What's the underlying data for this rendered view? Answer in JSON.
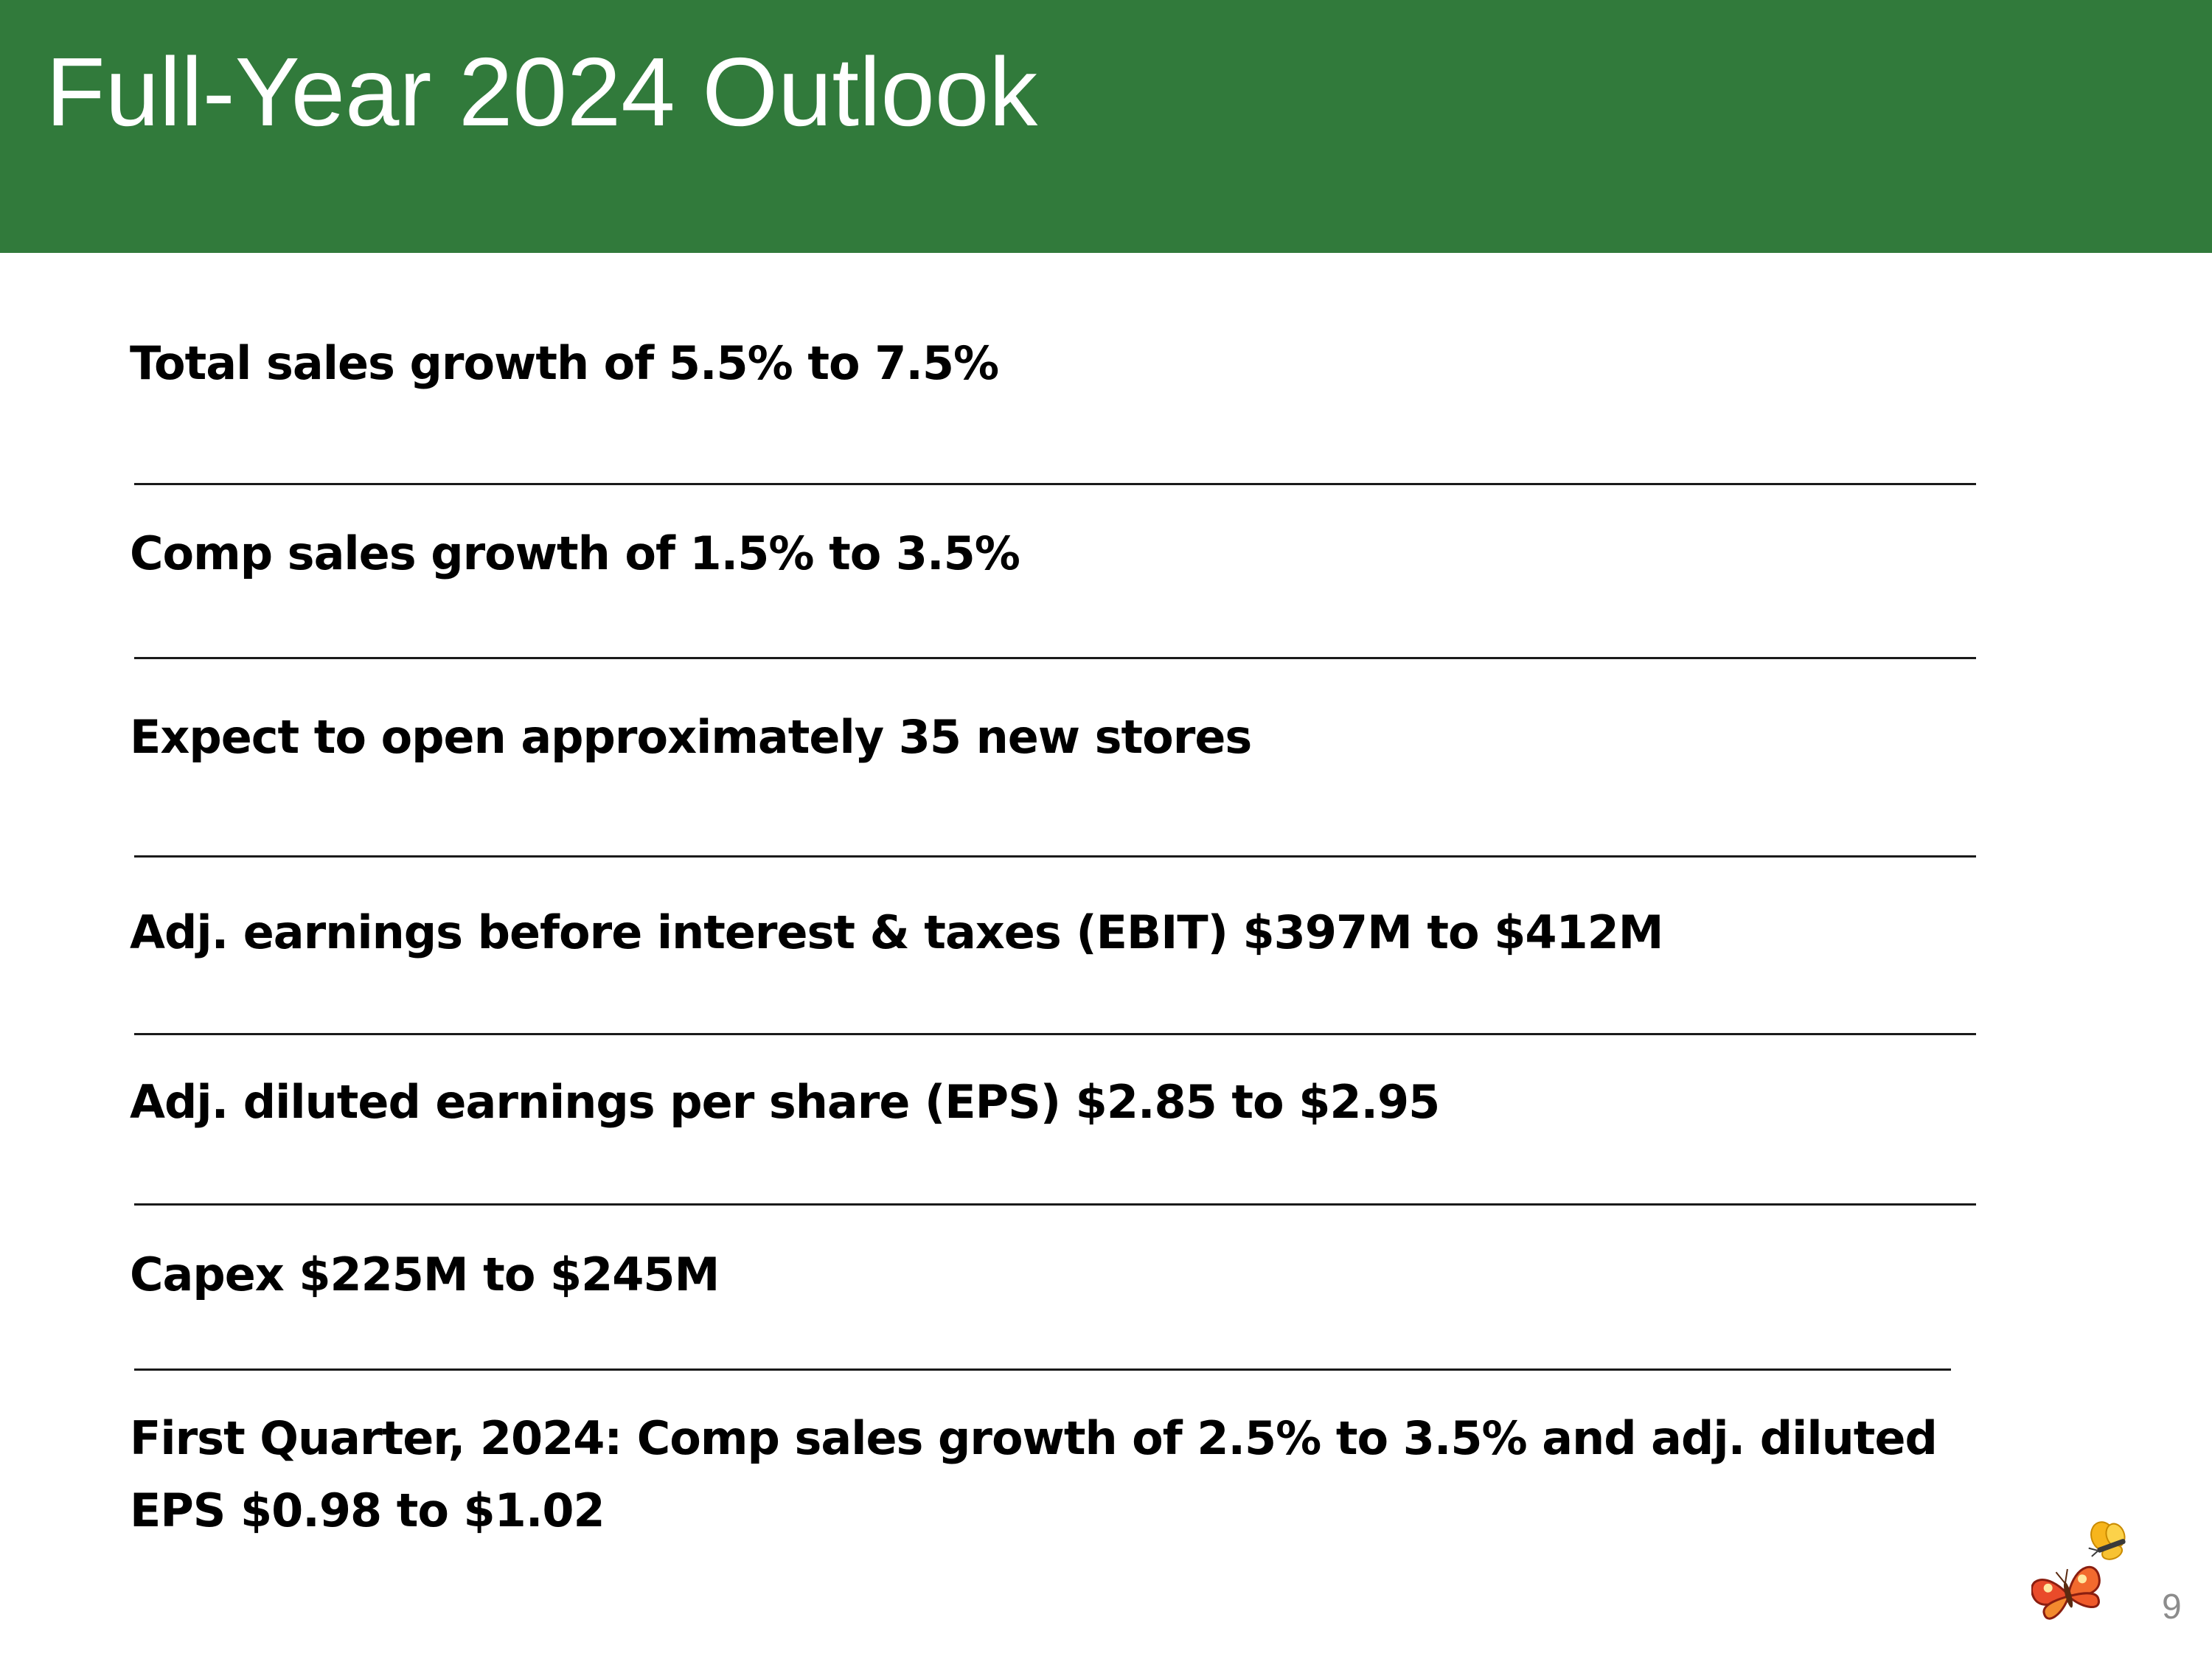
{
  "slide": {
    "title": "Full-Year 2024 Outlook",
    "page_number": "9"
  },
  "outlook": {
    "items": [
      "Total sales growth of 5.5% to 7.5%",
      "Comp sales growth of 1.5% to 3.5%",
      "Expect to open approximately 35 new stores",
      "Adj. earnings before interest & taxes (EBIT) $397M to $412M",
      "Adj. diluted earnings per share (EPS) $2.85 to $2.95",
      "Capex $225M to $245M",
      "First Quarter, 2024: Comp sales growth of 2.5% to 3.5% and adj. diluted EPS $0.98 to $1.02"
    ]
  },
  "colors": {
    "header_green": "#317a3b",
    "title_text": "#ffffff",
    "body_text": "#000000",
    "page_number": "#8c8c8c"
  },
  "icons": {
    "logo": "butterfly-logo-icon"
  }
}
